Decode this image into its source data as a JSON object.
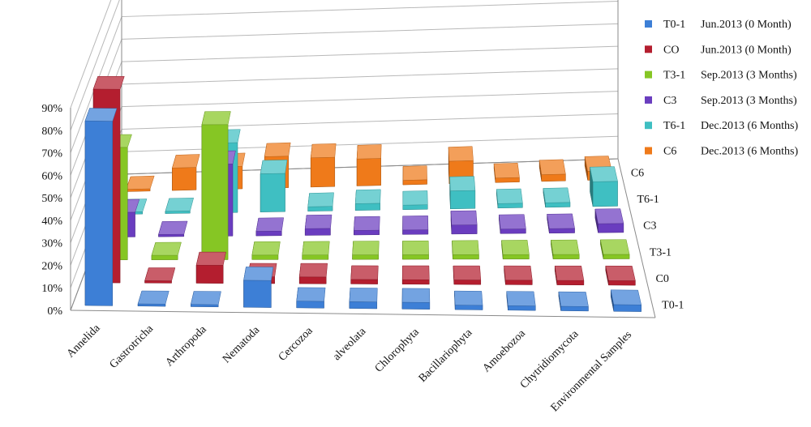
{
  "chart_data": {
    "type": "bar",
    "subtype": "3d-column",
    "categories": [
      "Annelida",
      "Gastrotricha",
      "Arthropoda",
      "Nematoda",
      "Cercozoa",
      "alveolata",
      "Chlorophyta",
      "Bacillariophyta",
      "Amoebozoa",
      "Chytridiomycota",
      "Environmental Samples"
    ],
    "depth_labels": [
      "T0-1",
      "C0",
      "T3-1",
      "C3",
      "T6-1",
      "C6"
    ],
    "y_ticks": [
      "0%",
      "10%",
      "20%",
      "30%",
      "40%",
      "50%",
      "60%",
      "70%",
      "80%",
      "90%"
    ],
    "ylim": [
      0,
      90
    ],
    "unit": "%",
    "grid": true,
    "legend_position": "right",
    "series": [
      {
        "name": "T0-1",
        "period": "Jun.2013 (0 Month)",
        "color": "#3d7fd6",
        "values": [
          82,
          1,
          1,
          12,
          3,
          3,
          3,
          2,
          2,
          2,
          3
        ]
      },
      {
        "name": "CO",
        "period": "Jun.2013 (0 Month)",
        "color": "#b41e2f",
        "values": [
          86,
          1,
          8,
          3,
          3,
          2,
          2,
          2,
          2,
          2,
          2
        ]
      },
      {
        "name": "T3-1",
        "period": "Sep.2013 (3 Months)",
        "color": "#86c624",
        "values": [
          50,
          2,
          60,
          2,
          2,
          2,
          2,
          2,
          2,
          2,
          2
        ]
      },
      {
        "name": "C3",
        "period": "Sep.2013 (3 Months)",
        "color": "#6a3dbf",
        "values": [
          11,
          1,
          32,
          2,
          3,
          2,
          2,
          4,
          2,
          2,
          4
        ]
      },
      {
        "name": "T6-1",
        "period": "Dec.2013 (6 Months)",
        "color": "#3fbfc2",
        "values": [
          1,
          1,
          31,
          17,
          2,
          3,
          2,
          8,
          2,
          2,
          11
        ]
      },
      {
        "name": "C6",
        "period": "Dec.2013 (6 Months)",
        "color": "#ef7a1a",
        "values": [
          1,
          10,
          10,
          14,
          13,
          12,
          2,
          10,
          2,
          3,
          4
        ]
      }
    ]
  }
}
